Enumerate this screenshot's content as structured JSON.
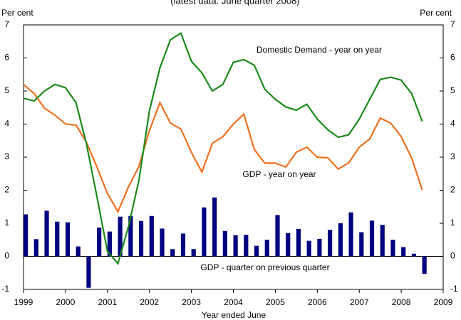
{
  "chart_data": {
    "type": "combo",
    "title": "(latest data: June quarter 2008)",
    "ylabel": "Per cent",
    "y2label": "Per cent",
    "xlabel": "Year ended June",
    "annotations": [
      "Domestic Demand - year on year",
      "GDP - year on year",
      "GDP - quarter on previous quarter"
    ],
    "x": [
      1999,
      1999.25,
      1999.5,
      1999.75,
      2000,
      2000.25,
      2000.5,
      2000.75,
      2001,
      2001.25,
      2001.5,
      2001.75,
      2002,
      2002.25,
      2002.5,
      2002.75,
      2003,
      2003.25,
      2003.5,
      2003.75,
      2004,
      2004.25,
      2004.5,
      2004.75,
      2005,
      2005.25,
      2005.5,
      2005.75,
      2006,
      2006.25,
      2006.5,
      2006.75,
      2007,
      2007.25,
      2007.5,
      2007.75,
      2008,
      2008.25,
      2008.5
    ],
    "series": [
      {
        "name": "GDP - quarter on previous quarter",
        "type": "bar",
        "color": "#000080",
        "values": [
          1.27,
          0.52,
          1.38,
          1.05,
          1.03,
          0.3,
          -0.95,
          0.87,
          0.75,
          1.2,
          1.22,
          1.07,
          1.22,
          0.84,
          0.22,
          0.69,
          0.22,
          1.48,
          1.78,
          0.77,
          0.64,
          0.65,
          0.32,
          0.5,
          1.25,
          0.7,
          0.83,
          0.47,
          0.53,
          0.8,
          1.0,
          1.33,
          0.73,
          1.08,
          0.95,
          0.5,
          0.28,
          0.08,
          -0.53
        ]
      },
      {
        "name": "GDP - year on year",
        "type": "line",
        "color": "#f07020",
        "values": [
          5.2,
          4.93,
          4.48,
          4.27,
          4.0,
          3.97,
          3.45,
          2.7,
          1.9,
          1.35,
          2.1,
          2.72,
          3.8,
          4.65,
          4.03,
          3.85,
          3.15,
          2.55,
          3.42,
          3.62,
          4.0,
          4.3,
          3.23,
          2.82,
          2.82,
          2.7,
          3.15,
          3.3,
          3.0,
          2.98,
          2.64,
          2.83,
          3.3,
          3.55,
          4.18,
          4.03,
          3.62,
          2.97,
          2.01
        ]
      },
      {
        "name": "Domestic Demand - year on year",
        "type": "line",
        "color": "#1a8a1a",
        "values": [
          4.78,
          4.7,
          5.0,
          5.2,
          5.1,
          4.65,
          3.4,
          1.8,
          0.15,
          -0.22,
          0.9,
          2.3,
          4.4,
          5.7,
          6.55,
          6.75,
          5.9,
          5.55,
          5.0,
          5.2,
          5.87,
          5.95,
          5.78,
          5.05,
          4.75,
          4.52,
          4.42,
          4.6,
          4.15,
          3.83,
          3.6,
          3.68,
          4.15,
          4.75,
          5.35,
          5.42,
          5.33,
          4.92,
          4.08
        ]
      }
    ],
    "xlim": [
      1999,
      2009
    ],
    "xticks": [
      1999,
      2000,
      2001,
      2002,
      2003,
      2004,
      2005,
      2006,
      2007,
      2008,
      2009
    ],
    "ylim": [
      -1,
      7
    ],
    "yticks": [
      -1,
      0,
      1,
      2,
      3,
      4,
      5,
      6,
      7
    ],
    "y2lim": [
      -1,
      7
    ],
    "y2ticks": [
      -1,
      0,
      1,
      2,
      3,
      4,
      5,
      6,
      7
    ]
  }
}
